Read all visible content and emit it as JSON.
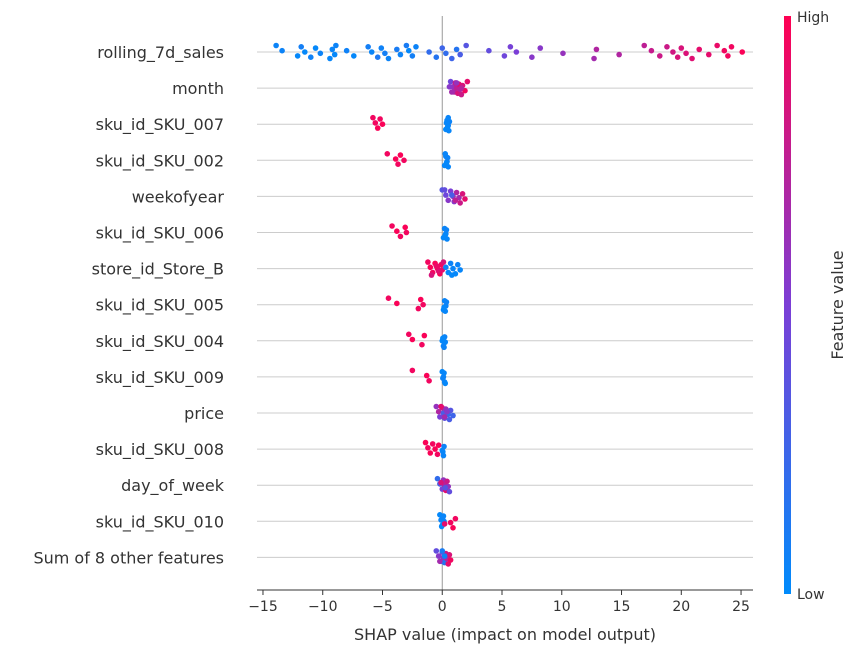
{
  "chart_data": {
    "type": "scatter",
    "subtype": "shap-beeswarm",
    "title": "",
    "xlabel": "SHAP value (impact on model output)",
    "ylabel": "",
    "xlim": [
      -15.5,
      26
    ],
    "xticks": [
      -15,
      -10,
      -5,
      0,
      5,
      10,
      15,
      20,
      25
    ],
    "xtick_labels": [
      "−15",
      "−10",
      "−5",
      "0",
      "5",
      "10",
      "15",
      "20",
      "25"
    ],
    "grid": "horizontal per feature",
    "colorbar": {
      "label": "Feature value",
      "high_label": "High",
      "low_label": "Low",
      "low_color": "#008bfb",
      "mid_color": "#7b3ed6",
      "high_color": "#ff0052"
    },
    "features": [
      {
        "name": "rolling_7d_sales",
        "points": [
          [
            -13.9,
            0.05
          ],
          [
            -13.4,
            0.05
          ],
          [
            -12.1,
            0.02
          ],
          [
            -11.8,
            0.08
          ],
          [
            -11.5,
            0.02
          ],
          [
            -11.0,
            0.06
          ],
          [
            -10.6,
            0.02
          ],
          [
            -10.2,
            0.05
          ],
          [
            -9.4,
            0.03
          ],
          [
            -9.2,
            0.04
          ],
          [
            -9.0,
            0.02
          ],
          [
            -8.9,
            0.05
          ],
          [
            -8.0,
            0.06
          ],
          [
            -7.4,
            0.02
          ],
          [
            -6.2,
            0.08
          ],
          [
            -5.9,
            0.04
          ],
          [
            -5.4,
            0.12
          ],
          [
            -5.1,
            0.06
          ],
          [
            -4.8,
            0.08
          ],
          [
            -4.5,
            0.05
          ],
          [
            -3.8,
            0.1
          ],
          [
            -3.5,
            0.05
          ],
          [
            -3.0,
            0.1
          ],
          [
            -2.8,
            0.02
          ],
          [
            -2.5,
            0.08
          ],
          [
            -2.2,
            0.05
          ],
          [
            -1.1,
            0.2
          ],
          [
            -0.5,
            0.15
          ],
          [
            0.0,
            0.25
          ],
          [
            0.3,
            0.2
          ],
          [
            0.8,
            0.25
          ],
          [
            1.2,
            0.15
          ],
          [
            1.5,
            0.3
          ],
          [
            2.0,
            0.35
          ],
          [
            3.9,
            0.4
          ],
          [
            5.2,
            0.45
          ],
          [
            5.7,
            0.48
          ],
          [
            6.2,
            0.5
          ],
          [
            7.5,
            0.55
          ],
          [
            8.2,
            0.55
          ],
          [
            10.1,
            0.6
          ],
          [
            12.7,
            0.65
          ],
          [
            12.9,
            0.7
          ],
          [
            14.8,
            0.7
          ],
          [
            16.9,
            0.75
          ],
          [
            17.5,
            0.78
          ],
          [
            18.2,
            0.8
          ],
          [
            18.8,
            0.8
          ],
          [
            19.3,
            0.82
          ],
          [
            19.7,
            0.85
          ],
          [
            20.0,
            0.85
          ],
          [
            20.4,
            0.86
          ],
          [
            20.9,
            0.88
          ],
          [
            21.5,
            0.9
          ],
          [
            22.3,
            0.9
          ],
          [
            23.0,
            0.92
          ],
          [
            23.6,
            0.95
          ],
          [
            23.9,
            0.95
          ],
          [
            24.2,
            0.95
          ],
          [
            25.1,
            0.98
          ]
        ]
      },
      {
        "name": "month",
        "points": [
          [
            0.7,
            0.45
          ],
          [
            0.9,
            0.6
          ],
          [
            1.0,
            0.7
          ],
          [
            1.1,
            0.8
          ],
          [
            1.2,
            0.75
          ],
          [
            1.3,
            0.85
          ],
          [
            1.4,
            0.9
          ],
          [
            1.5,
            0.7
          ],
          [
            1.6,
            0.8
          ],
          [
            1.7,
            0.85
          ],
          [
            1.9,
            0.95
          ],
          [
            2.1,
            0.9
          ],
          [
            0.6,
            0.55
          ],
          [
            0.8,
            0.65
          ],
          [
            1.2,
            0.6
          ],
          [
            1.6,
            0.72
          ]
        ]
      },
      {
        "name": "sku_id_SKU_007",
        "points": [
          [
            -5.8,
            0.95
          ],
          [
            -5.6,
            0.95
          ],
          [
            -5.4,
            0.98
          ],
          [
            -5.2,
            0.95
          ],
          [
            -5.0,
            0.98
          ],
          [
            0.3,
            0.02
          ],
          [
            0.4,
            0.04
          ],
          [
            0.5,
            0.05
          ],
          [
            0.55,
            0.03
          ],
          [
            0.6,
            0.05
          ],
          [
            0.45,
            0.02
          ],
          [
            0.5,
            0.04
          ],
          [
            0.35,
            0.03
          ]
        ]
      },
      {
        "name": "sku_id_SKU_002",
        "points": [
          [
            -4.6,
            0.95
          ],
          [
            -3.9,
            0.98
          ],
          [
            -3.7,
            0.95
          ],
          [
            -3.5,
            0.98
          ],
          [
            -3.2,
            0.95
          ],
          [
            0.2,
            0.02
          ],
          [
            0.3,
            0.04
          ],
          [
            0.4,
            0.05
          ],
          [
            0.5,
            0.03
          ],
          [
            0.45,
            0.05
          ],
          [
            0.35,
            0.02
          ],
          [
            0.25,
            0.04
          ]
        ]
      },
      {
        "name": "weekofyear",
        "points": [
          [
            0.0,
            0.35
          ],
          [
            0.3,
            0.45
          ],
          [
            0.5,
            0.55
          ],
          [
            0.7,
            0.5
          ],
          [
            0.9,
            0.6
          ],
          [
            1.0,
            0.55
          ],
          [
            1.2,
            0.7
          ],
          [
            1.4,
            0.65
          ],
          [
            1.5,
            0.8
          ],
          [
            1.7,
            0.85
          ],
          [
            1.9,
            0.9
          ],
          [
            0.2,
            0.4
          ],
          [
            0.8,
            0.3
          ],
          [
            1.1,
            0.75
          ]
        ]
      },
      {
        "name": "sku_id_SKU_006",
        "points": [
          [
            -4.2,
            0.95
          ],
          [
            -3.8,
            0.98
          ],
          [
            -3.5,
            0.95
          ],
          [
            -3.1,
            0.98
          ],
          [
            -3.0,
            0.95
          ],
          [
            0.1,
            0.02
          ],
          [
            0.2,
            0.04
          ],
          [
            0.3,
            0.05
          ],
          [
            0.4,
            0.03
          ],
          [
            0.35,
            0.05
          ],
          [
            0.25,
            0.02
          ]
        ]
      },
      {
        "name": "store_id_Store_B",
        "points": [
          [
            -1.2,
            0.95
          ],
          [
            -1.0,
            0.98
          ],
          [
            -0.8,
            0.95
          ],
          [
            -0.6,
            0.98
          ],
          [
            -0.4,
            0.95
          ],
          [
            -0.2,
            0.98
          ],
          [
            -0.1,
            0.95
          ],
          [
            0.0,
            0.9
          ],
          [
            -0.9,
            0.85
          ],
          [
            -0.5,
            0.92
          ],
          [
            -0.3,
            0.88
          ],
          [
            0.1,
            0.85
          ],
          [
            0.3,
            0.05
          ],
          [
            0.5,
            0.02
          ],
          [
            0.7,
            0.05
          ],
          [
            0.9,
            0.04
          ],
          [
            1.1,
            0.02
          ],
          [
            1.3,
            0.05
          ],
          [
            1.5,
            0.03
          ],
          [
            0.8,
            0.02
          ]
        ]
      },
      {
        "name": "sku_id_SKU_005",
        "points": [
          [
            -4.5,
            0.95
          ],
          [
            -3.8,
            0.98
          ],
          [
            -2.0,
            0.95
          ],
          [
            -1.8,
            0.98
          ],
          [
            -1.6,
            0.95
          ],
          [
            0.1,
            0.02
          ],
          [
            0.2,
            0.04
          ],
          [
            0.3,
            0.05
          ],
          [
            0.25,
            0.03
          ],
          [
            0.35,
            0.05
          ],
          [
            0.15,
            0.02
          ]
        ]
      },
      {
        "name": "sku_id_SKU_004",
        "points": [
          [
            -2.8,
            0.95
          ],
          [
            -2.5,
            0.98
          ],
          [
            -1.7,
            0.95
          ],
          [
            -1.5,
            0.98
          ],
          [
            0.0,
            0.02
          ],
          [
            0.1,
            0.04
          ],
          [
            0.2,
            0.05
          ],
          [
            0.25,
            0.03
          ],
          [
            0.15,
            0.05
          ],
          [
            0.05,
            0.02
          ]
        ]
      },
      {
        "name": "sku_id_SKU_009",
        "points": [
          [
            -2.5,
            0.95
          ],
          [
            -1.3,
            0.98
          ],
          [
            -1.1,
            0.95
          ],
          [
            0.0,
            0.02
          ],
          [
            0.1,
            0.04
          ],
          [
            0.2,
            0.05
          ],
          [
            0.15,
            0.03
          ],
          [
            0.05,
            0.05
          ],
          [
            0.25,
            0.02
          ]
        ]
      },
      {
        "name": "price",
        "points": [
          [
            -0.5,
            0.6
          ],
          [
            -0.3,
            0.7
          ],
          [
            -0.2,
            0.5
          ],
          [
            0.0,
            0.8
          ],
          [
            0.1,
            0.3
          ],
          [
            0.2,
            0.4
          ],
          [
            0.3,
            0.6
          ],
          [
            0.5,
            0.2
          ],
          [
            0.6,
            0.3
          ],
          [
            0.7,
            0.35
          ],
          [
            0.9,
            0.25
          ],
          [
            -0.1,
            0.9
          ],
          [
            0.4,
            0.55
          ],
          [
            0.2,
            0.65
          ]
        ]
      },
      {
        "name": "sku_id_SKU_008",
        "points": [
          [
            -1.4,
            0.98
          ],
          [
            -1.2,
            0.95
          ],
          [
            -1.0,
            0.98
          ],
          [
            -0.8,
            0.95
          ],
          [
            -0.6,
            0.98
          ],
          [
            -0.4,
            0.95
          ],
          [
            -0.3,
            0.98
          ],
          [
            0.0,
            0.02
          ],
          [
            0.1,
            0.04
          ],
          [
            0.15,
            0.05
          ],
          [
            0.05,
            0.03
          ]
        ]
      },
      {
        "name": "day_of_week",
        "points": [
          [
            -0.4,
            0.2
          ],
          [
            -0.2,
            0.3
          ],
          [
            0.0,
            0.5
          ],
          [
            0.1,
            0.6
          ],
          [
            0.2,
            0.7
          ],
          [
            0.3,
            0.9
          ],
          [
            0.4,
            0.8
          ],
          [
            0.5,
            0.6
          ],
          [
            0.6,
            0.4
          ],
          [
            -0.1,
            0.85
          ],
          [
            0.25,
            0.35
          ]
        ]
      },
      {
        "name": "sku_id_SKU_010",
        "points": [
          [
            -0.2,
            0.02
          ],
          [
            -0.1,
            0.04
          ],
          [
            0.0,
            0.05
          ],
          [
            0.1,
            0.03
          ],
          [
            0.15,
            0.05
          ],
          [
            -0.05,
            0.02
          ],
          [
            0.05,
            0.04
          ],
          [
            0.7,
            0.95
          ],
          [
            0.9,
            0.98
          ],
          [
            1.1,
            0.95
          ],
          [
            0.2,
            0.9
          ]
        ]
      },
      {
        "name": "Sum of 8 other features",
        "points": [
          [
            -0.5,
            0.4
          ],
          [
            -0.3,
            0.55
          ],
          [
            -0.1,
            0.3
          ],
          [
            0.0,
            0.45
          ],
          [
            0.1,
            0.6
          ],
          [
            0.2,
            0.15
          ],
          [
            0.3,
            0.8
          ],
          [
            0.4,
            0.7
          ],
          [
            0.5,
            0.9
          ],
          [
            0.6,
            0.85
          ],
          [
            0.7,
            0.95
          ],
          [
            0.0,
            0.1
          ],
          [
            0.2,
            0.05
          ],
          [
            -0.2,
            0.65
          ]
        ]
      }
    ]
  }
}
